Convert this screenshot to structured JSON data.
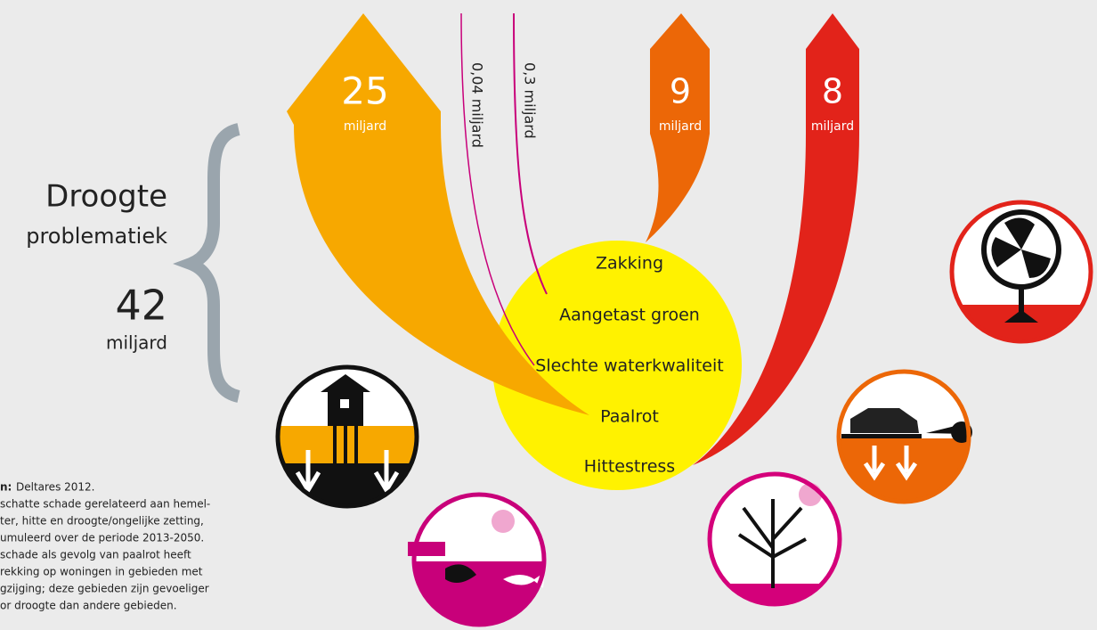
{
  "group": {
    "title": "Droogte",
    "subtitle": "problematiek",
    "total": "42",
    "unit": "miljard"
  },
  "flows": [
    {
      "value": "25",
      "unit": "miljard"
    },
    {
      "label": "0,04 miljard"
    },
    {
      "label": "0,3 miljard"
    },
    {
      "value": "9",
      "unit": "miljard"
    },
    {
      "value": "8",
      "unit": "miljard"
    }
  ],
  "problems": [
    "Zakking",
    "Aangetast groen",
    "Slechte waterkwaliteit",
    "Paalrot",
    "Hittestress"
  ],
  "source": {
    "label": "n:",
    "text": "Deltares 2012.",
    "note": [
      "schatte schade gerelateerd aan hemel-",
      "ter, hitte en droogte/ongelijke zetting,",
      "umuleerd over de periode 2013-2050.",
      "schade als gevolg van paalrot heeft",
      "rekking op woningen in gebieden met",
      "gzijging; deze gebieden zijn gevoeliger",
      "or droogte dan andere gebieden."
    ]
  }
}
